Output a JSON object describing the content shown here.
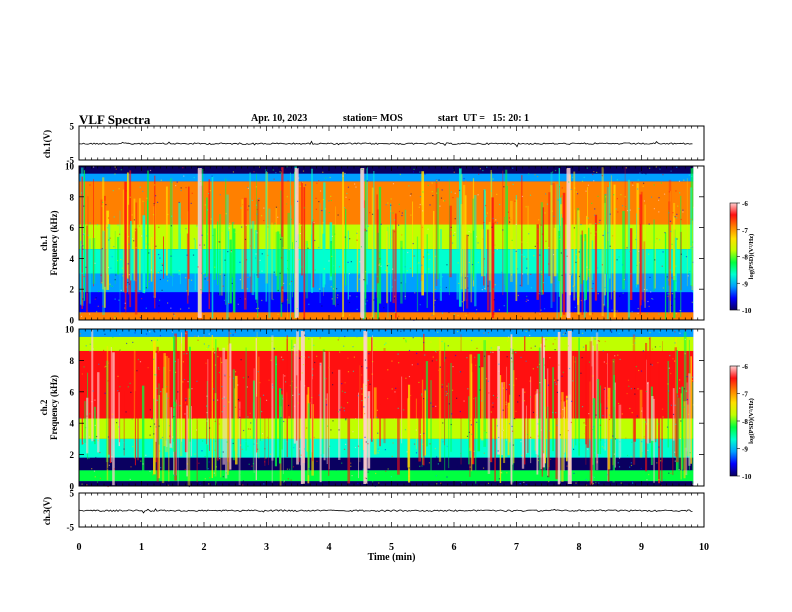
{
  "header": {
    "title": "VLF Spectra",
    "date": "Apr. 10, 2023",
    "station": "station= MOS",
    "start": "start  UT =   15: 20: 1"
  },
  "colors": {
    "spectrum": [
      "#0a0060",
      "#0000ff",
      "#00a0ff",
      "#00ffd0",
      "#00ff40",
      "#c0ff00",
      "#ffe000",
      "#ff8000",
      "#ff1010",
      "#ffd0d0"
    ]
  },
  "chart_data": [
    {
      "type": "line",
      "name": "waveform-ch1",
      "ylabel": "ch.1(V)",
      "ylim": [
        -5,
        5
      ],
      "yticks": [
        5,
        -5
      ],
      "x": [
        0,
        10
      ],
      "y": [
        -0.2,
        -0.2
      ]
    },
    {
      "type": "heatmap",
      "name": "spectrogram-ch1",
      "ylabel_line1": "ch.1",
      "ylabel_line2": "Frequency (kHz)",
      "ylim": [
        0,
        10
      ],
      "yticks": [
        0,
        2,
        4,
        6,
        8,
        10
      ],
      "colorbar": {
        "label": "log(PSD)(V²/Hz)",
        "ticks": [
          -6,
          -7,
          -8,
          -9,
          -10
        ],
        "range": [
          -10,
          -6
        ]
      }
    },
    {
      "type": "heatmap",
      "name": "spectrogram-ch2",
      "ylabel_line1": "ch.2",
      "ylabel_line2": "Frequency (kHz)",
      "ylim": [
        0,
        10
      ],
      "yticks": [
        0,
        2,
        4,
        6,
        8,
        10
      ],
      "colorbar": {
        "label": "log(PSD)(V²/Hz)",
        "ticks": [
          -6,
          -7,
          -8,
          -9,
          -10
        ],
        "range": [
          -10,
          -6
        ]
      }
    },
    {
      "type": "line",
      "name": "waveform-ch3",
      "ylabel": "ch.3(V)",
      "ylim": [
        -5,
        5
      ],
      "yticks": [
        5,
        -5
      ],
      "x": [
        0,
        10
      ],
      "y": [
        -0.2,
        -0.2
      ]
    }
  ],
  "xaxis": {
    "label": "Time  (min)",
    "ticks": [
      0,
      1,
      2,
      3,
      4,
      5,
      6,
      7,
      8,
      9,
      10
    ],
    "range": [
      0,
      10
    ],
    "data_end": 9.83
  }
}
